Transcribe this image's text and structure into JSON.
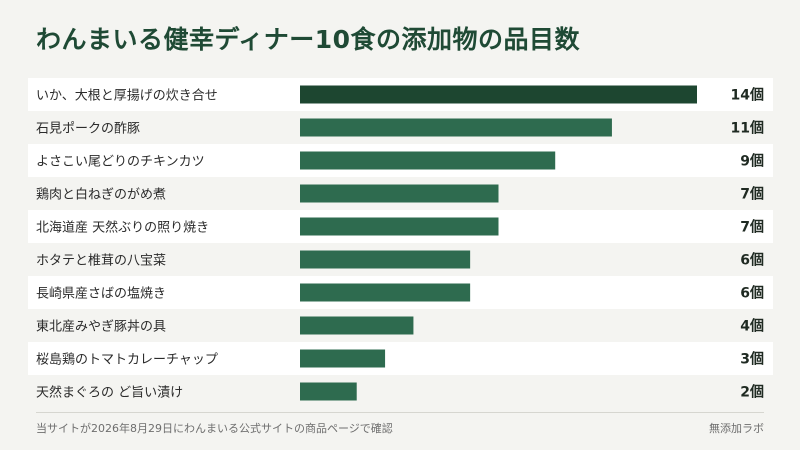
{
  "chart_data": {
    "type": "bar",
    "orientation": "horizontal",
    "title": "わんまいる健幸ディナー10食の添加物の品目数",
    "categories": [
      "いか、大根と厚揚げの炊き合せ",
      "石見ポークの酢豚",
      "よさこい尾どりのチキンカツ",
      "鶏肉と白ねぎのがめ煮",
      "北海道産 天然ぶりの照り焼き",
      "ホタテと椎茸の八宝菜",
      "長崎県産さばの塩焼き",
      "東北産みやぎ豚丼の具",
      "桜島鶏のトマトカレーチャップ",
      "天然まぐろの ど旨い漬け"
    ],
    "values": [
      14,
      11,
      9,
      7,
      7,
      6,
      6,
      4,
      3,
      2
    ],
    "value_labels": [
      "14個",
      "11個",
      "9個",
      "7個",
      "7個",
      "6個",
      "6個",
      "4個",
      "3個",
      "2個"
    ],
    "unit": "個",
    "xlim": [
      0,
      14
    ],
    "grid": false,
    "legend": "none",
    "colors": {
      "highlight": "#1d4630",
      "bar": "#2e6b4f",
      "row_alt": "#ffffff"
    }
  },
  "footer": {
    "note": "当サイトが2026年8月29日にわんまいる公式サイトの商品ページで確認",
    "brand": "無添加ラボ"
  }
}
